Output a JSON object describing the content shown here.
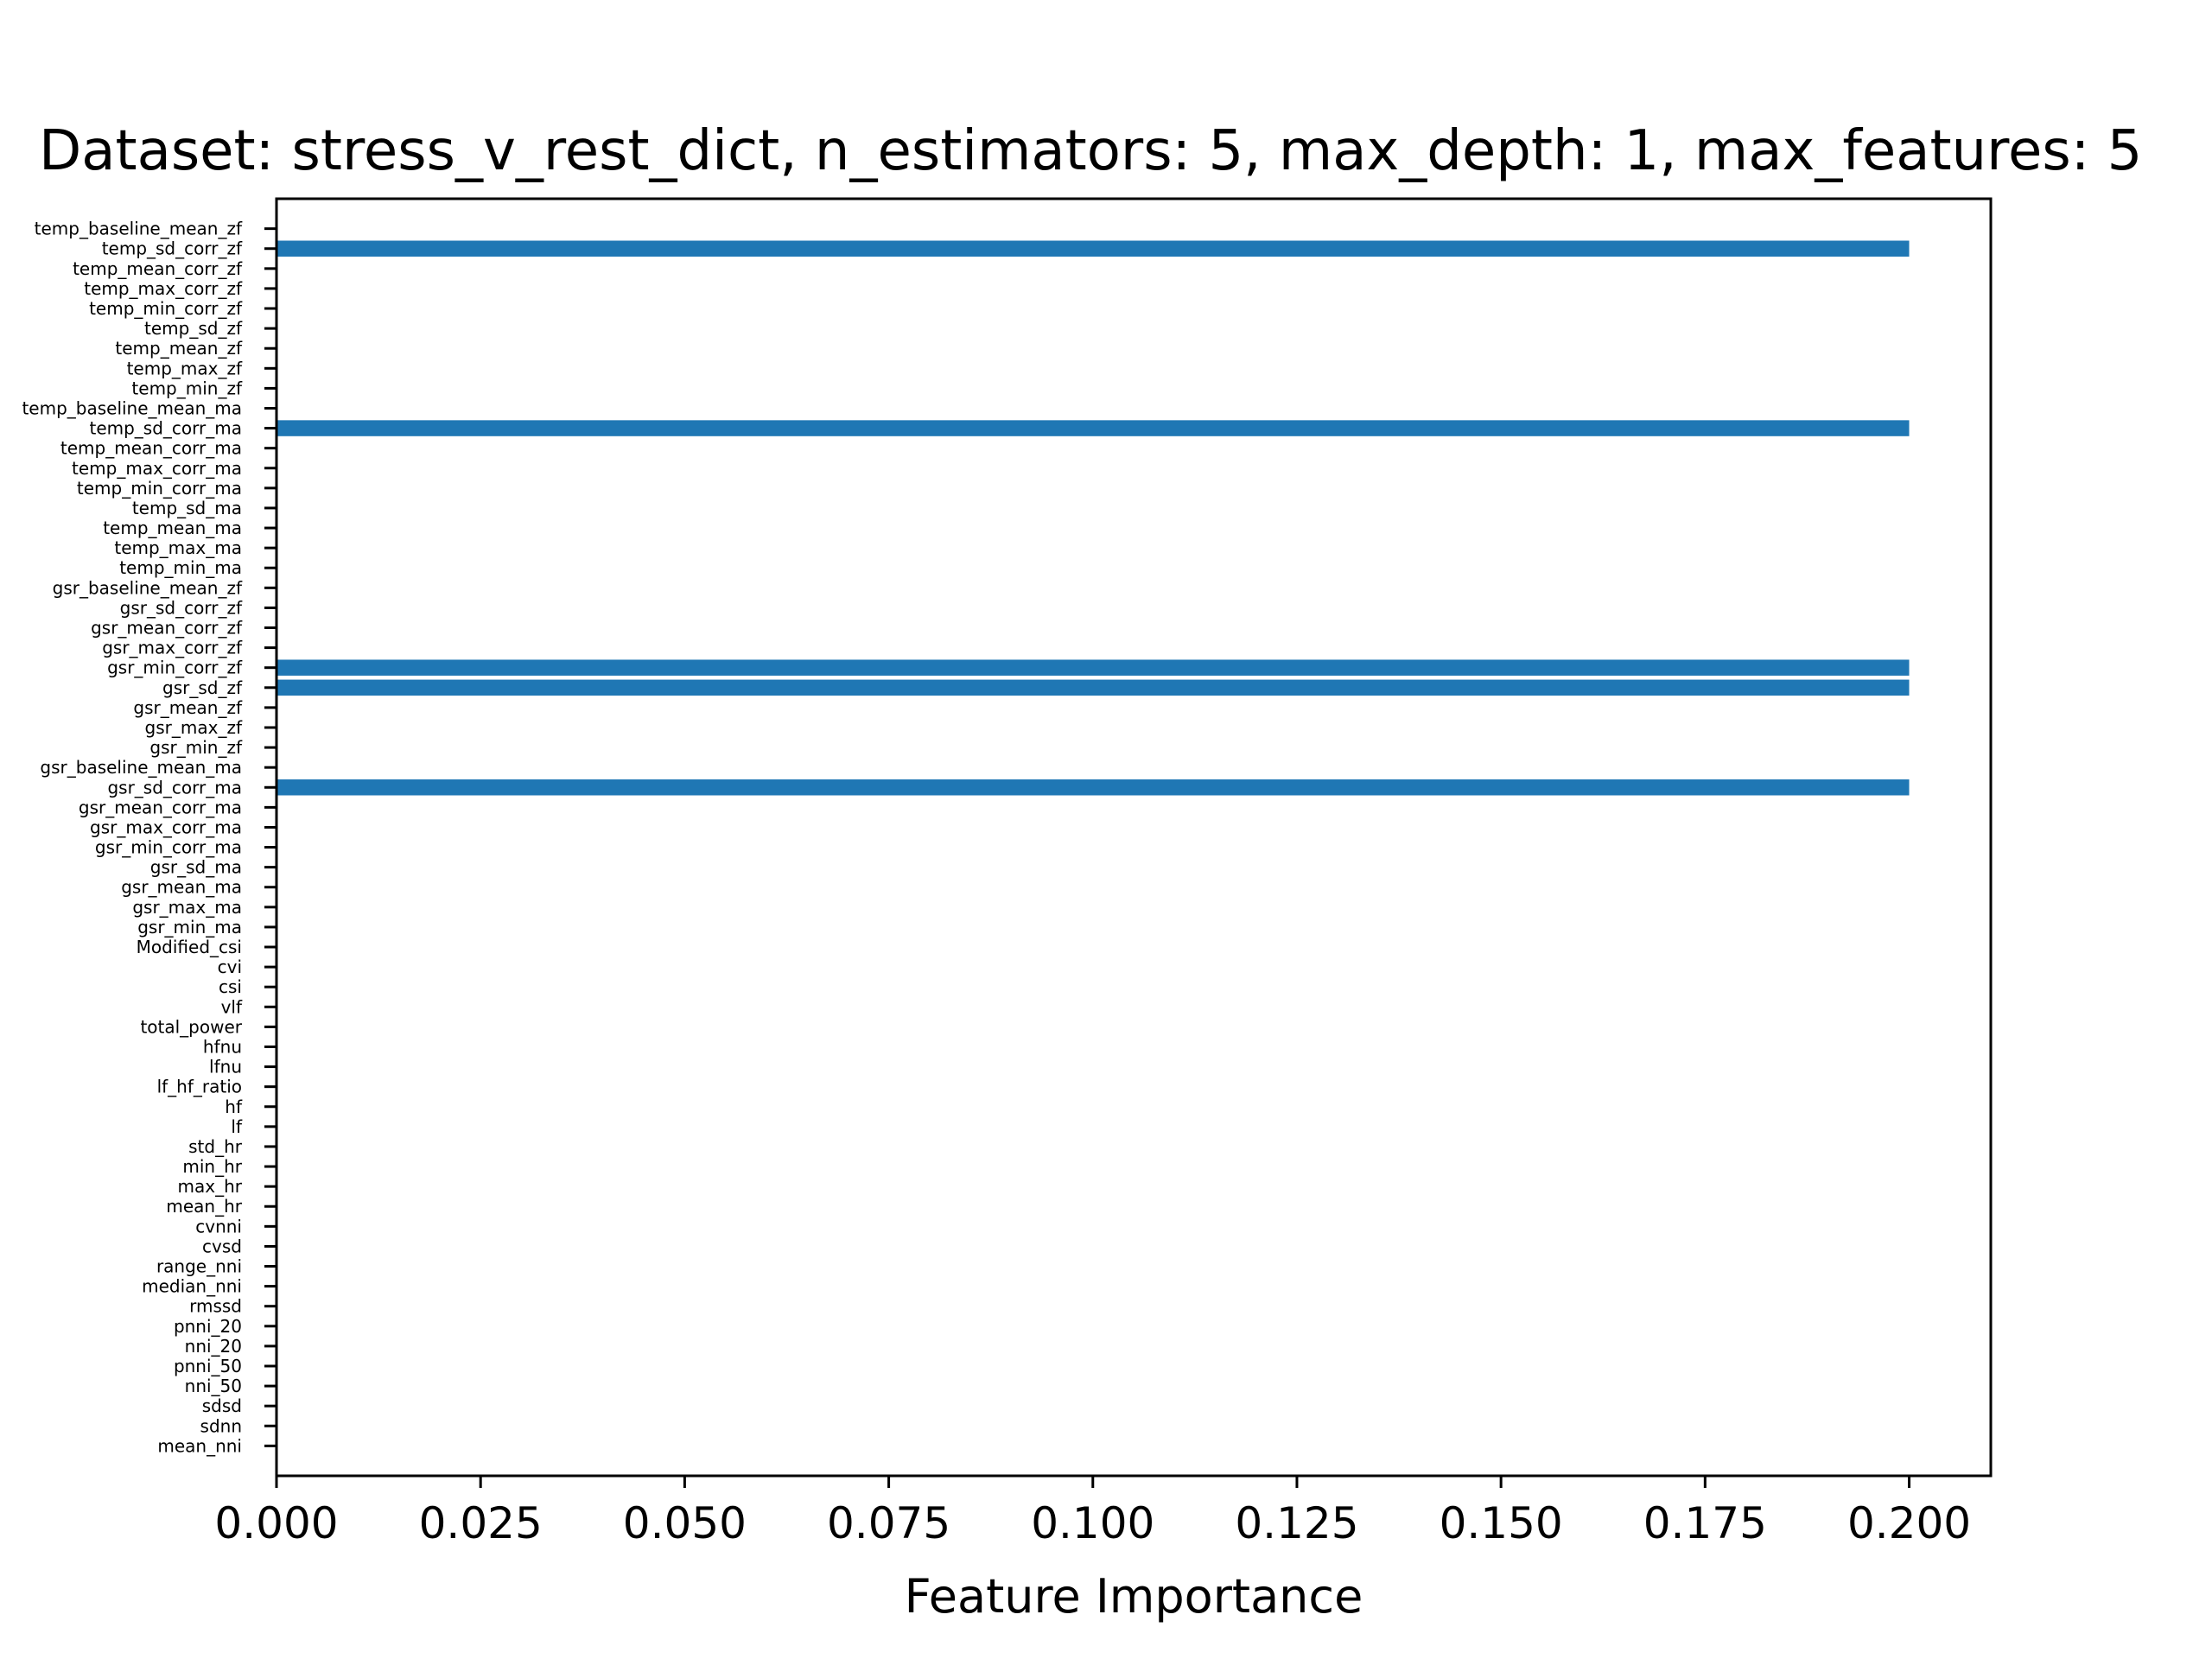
{
  "chart_data": {
    "type": "bar",
    "orientation": "horizontal",
    "title": "Dataset: stress_v_rest_dict, n_estimators: 5, max_depth: 1, max_features: 5",
    "xlabel": "Feature Importance",
    "ylabel": "",
    "xlim": [
      0,
      0.21
    ],
    "xticks": [
      "0.000",
      "0.025",
      "0.050",
      "0.075",
      "0.100",
      "0.125",
      "0.150",
      "0.175",
      "0.200"
    ],
    "grid": false,
    "bar_color": "#1f77b4",
    "categories": [
      "mean_nni",
      "sdnn",
      "sdsd",
      "nni_50",
      "pnni_50",
      "nni_20",
      "pnni_20",
      "rmssd",
      "median_nni",
      "range_nni",
      "cvsd",
      "cvnni",
      "mean_hr",
      "max_hr",
      "min_hr",
      "std_hr",
      "lf",
      "hf",
      "lf_hf_ratio",
      "lfnu",
      "hfnu",
      "total_power",
      "vlf",
      "csi",
      "cvi",
      "Modified_csi",
      "gsr_min_ma",
      "gsr_max_ma",
      "gsr_mean_ma",
      "gsr_sd_ma",
      "gsr_min_corr_ma",
      "gsr_max_corr_ma",
      "gsr_mean_corr_ma",
      "gsr_sd_corr_ma",
      "gsr_baseline_mean_ma",
      "gsr_min_zf",
      "gsr_max_zf",
      "gsr_mean_zf",
      "gsr_sd_zf",
      "gsr_min_corr_zf",
      "gsr_max_corr_zf",
      "gsr_mean_corr_zf",
      "gsr_sd_corr_zf",
      "gsr_baseline_mean_zf",
      "temp_min_ma",
      "temp_max_ma",
      "temp_mean_ma",
      "temp_sd_ma",
      "temp_min_corr_ma",
      "temp_max_corr_ma",
      "temp_mean_corr_ma",
      "temp_sd_corr_ma",
      "temp_baseline_mean_ma",
      "temp_min_zf",
      "temp_max_zf",
      "temp_mean_zf",
      "temp_sd_zf",
      "temp_min_corr_zf",
      "temp_max_corr_zf",
      "temp_mean_corr_zf",
      "temp_sd_corr_zf",
      "temp_baseline_mean_zf"
    ],
    "values": [
      0,
      0,
      0,
      0,
      0,
      0,
      0,
      0,
      0,
      0,
      0,
      0,
      0,
      0,
      0,
      0,
      0,
      0,
      0,
      0,
      0,
      0,
      0,
      0,
      0,
      0,
      0,
      0,
      0,
      0,
      0,
      0,
      0,
      0.2,
      0,
      0,
      0,
      0,
      0.2,
      0.2,
      0,
      0,
      0,
      0,
      0,
      0,
      0,
      0,
      0,
      0,
      0,
      0.2,
      0,
      0,
      0,
      0,
      0,
      0,
      0,
      0,
      0.2,
      0
    ]
  }
}
